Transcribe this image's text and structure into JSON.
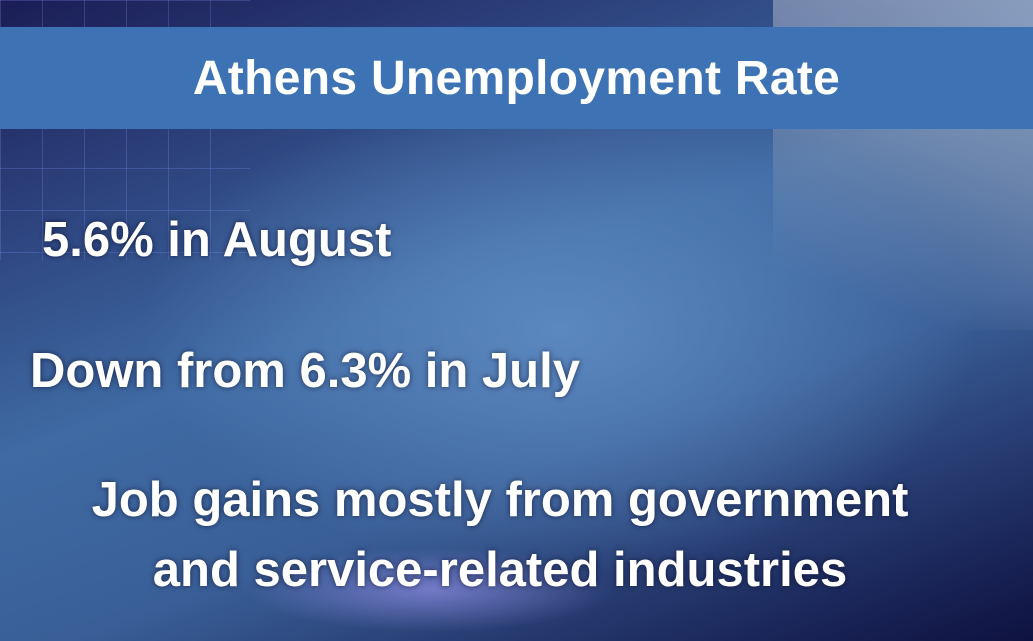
{
  "header": {
    "title": "Athens Unemployment Rate"
  },
  "bullets": [
    {
      "lines": [
        "5.6% in August"
      ]
    },
    {
      "lines": [
        "Down from 6.3% in July"
      ]
    },
    {
      "lines": [
        "Job gains mostly from government",
        "and service-related industries"
      ]
    }
  ]
}
